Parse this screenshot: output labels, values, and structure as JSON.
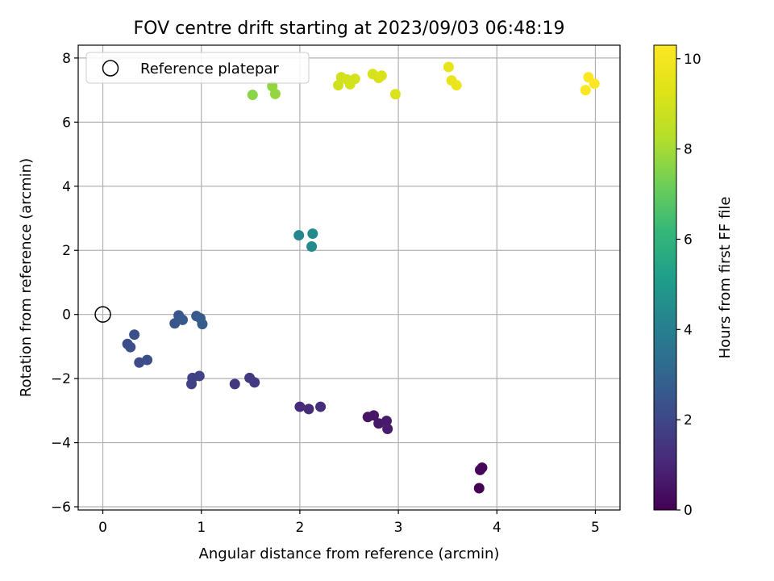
{
  "chart_data": {
    "type": "scatter",
    "title": "FOV centre drift starting at 2023/09/03 06:48:19",
    "xlabel": "Angular distance from reference (arcmin)",
    "ylabel": "Rotation from reference (arcmin)",
    "xlim": [
      -0.25,
      5.25
    ],
    "ylim": [
      -6.1,
      8.4
    ],
    "xticks": [
      0,
      1,
      2,
      3,
      4,
      5
    ],
    "xtick_labels": [
      "0",
      "1",
      "2",
      "3",
      "4",
      "5"
    ],
    "yticks": [
      -6,
      -4,
      -2,
      0,
      2,
      4,
      6,
      8
    ],
    "ytick_labels": [
      "−6",
      "−4",
      "−2",
      "0",
      "2",
      "4",
      "6",
      "8"
    ],
    "grid": true,
    "legend": {
      "position": "top-left",
      "entries": [
        "Reference platepar"
      ]
    },
    "reference_point": {
      "x": 0,
      "y": 0,
      "name": "Reference platepar",
      "marker": "open-circle"
    },
    "colorbar": {
      "label": "Hours from first FF file",
      "range": [
        0,
        10.3
      ],
      "ticks": [
        0,
        2,
        4,
        6,
        8,
        10
      ],
      "tick_labels": [
        "0",
        "2",
        "4",
        "6",
        "8",
        "10"
      ],
      "colormap": "viridis"
    },
    "points": [
      {
        "x": 3.82,
        "y": -5.42,
        "hours": 0.0
      },
      {
        "x": 3.83,
        "y": -4.85,
        "hours": 0.1
      },
      {
        "x": 3.85,
        "y": -4.78,
        "hours": 0.15
      },
      {
        "x": 2.69,
        "y": -3.2,
        "hours": 0.5
      },
      {
        "x": 2.75,
        "y": -3.15,
        "hours": 0.55
      },
      {
        "x": 2.8,
        "y": -3.4,
        "hours": 0.6
      },
      {
        "x": 2.88,
        "y": -3.32,
        "hours": 0.65
      },
      {
        "x": 2.89,
        "y": -3.57,
        "hours": 0.7
      },
      {
        "x": 2.0,
        "y": -2.88,
        "hours": 1.1
      },
      {
        "x": 2.09,
        "y": -2.95,
        "hours": 1.15
      },
      {
        "x": 2.21,
        "y": -2.88,
        "hours": 1.2
      },
      {
        "x": 1.34,
        "y": -2.17,
        "hours": 1.5
      },
      {
        "x": 1.49,
        "y": -1.98,
        "hours": 1.55
      },
      {
        "x": 1.54,
        "y": -2.12,
        "hours": 1.6
      },
      {
        "x": 0.9,
        "y": -2.17,
        "hours": 1.8
      },
      {
        "x": 0.91,
        "y": -1.98,
        "hours": 1.85
      },
      {
        "x": 0.98,
        "y": -1.92,
        "hours": 1.9
      },
      {
        "x": 0.25,
        "y": -0.92,
        "hours": 2.2
      },
      {
        "x": 0.28,
        "y": -1.02,
        "hours": 2.25
      },
      {
        "x": 0.32,
        "y": -0.63,
        "hours": 2.3
      },
      {
        "x": 0.37,
        "y": -1.5,
        "hours": 2.15
      },
      {
        "x": 0.45,
        "y": -1.42,
        "hours": 2.2
      },
      {
        "x": 0.73,
        "y": -0.28,
        "hours": 2.5
      },
      {
        "x": 0.77,
        "y": -0.03,
        "hours": 2.55
      },
      {
        "x": 0.81,
        "y": -0.17,
        "hours": 2.6
      },
      {
        "x": 0.95,
        "y": -0.05,
        "hours": 2.6
      },
      {
        "x": 0.99,
        "y": -0.12,
        "hours": 2.65
      },
      {
        "x": 1.01,
        "y": -0.3,
        "hours": 2.7
      },
      {
        "x": 1.99,
        "y": 2.47,
        "hours": 4.3
      },
      {
        "x": 2.12,
        "y": 2.12,
        "hours": 4.4
      },
      {
        "x": 2.13,
        "y": 2.52,
        "hours": 4.45
      },
      {
        "x": 1.52,
        "y": 6.85,
        "hours": 7.6
      },
      {
        "x": 1.72,
        "y": 7.12,
        "hours": 7.7
      },
      {
        "x": 1.75,
        "y": 6.88,
        "hours": 7.75
      },
      {
        "x": 2.39,
        "y": 7.15,
        "hours": 8.9
      },
      {
        "x": 2.42,
        "y": 7.4,
        "hours": 8.95
      },
      {
        "x": 2.48,
        "y": 7.33,
        "hours": 9.0
      },
      {
        "x": 2.51,
        "y": 7.18,
        "hours": 9.0
      },
      {
        "x": 2.56,
        "y": 7.35,
        "hours": 9.05
      },
      {
        "x": 2.74,
        "y": 7.5,
        "hours": 9.1
      },
      {
        "x": 2.8,
        "y": 7.38,
        "hours": 9.15
      },
      {
        "x": 2.83,
        "y": 7.45,
        "hours": 9.2
      },
      {
        "x": 2.97,
        "y": 6.87,
        "hours": 9.2
      },
      {
        "x": 3.51,
        "y": 7.72,
        "hours": 9.6
      },
      {
        "x": 3.54,
        "y": 7.3,
        "hours": 9.65
      },
      {
        "x": 3.59,
        "y": 7.15,
        "hours": 9.7
      },
      {
        "x": 4.9,
        "y": 7.0,
        "hours": 10.2
      },
      {
        "x": 4.93,
        "y": 7.4,
        "hours": 10.25
      },
      {
        "x": 4.99,
        "y": 7.2,
        "hours": 10.3
      }
    ]
  }
}
